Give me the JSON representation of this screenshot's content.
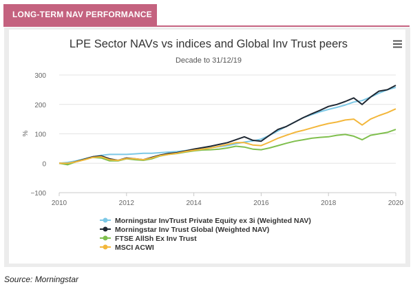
{
  "header": {
    "label": "LONG-TERM NAV PERFORMANCE"
  },
  "source": "Source: Morningstar",
  "chart_data": {
    "type": "line",
    "title": "LPE Sector NAVs vs indices and Global Inv Trust peers",
    "subtitle": "Decade to 31/12/19",
    "ylabel": "%",
    "xlabel": "",
    "xlim": [
      2010,
      2020
    ],
    "ylim": [
      -100,
      300
    ],
    "x_ticks": [
      "2010",
      "2012",
      "2014",
      "2016",
      "2018",
      "2020"
    ],
    "y_ticks": [
      "300",
      "200",
      "100",
      "0",
      "−100"
    ],
    "grid": "horizontal",
    "legend_position": "bottom",
    "series": [
      {
        "name": "Morningstar InvTrust Private Equity ex 3i (Weighted NAV)",
        "color": "#7cc8e6",
        "points": [
          [
            2010.0,
            0
          ],
          [
            2010.25,
            3
          ],
          [
            2010.5,
            8
          ],
          [
            2010.75,
            15
          ],
          [
            2011.0,
            22
          ],
          [
            2011.25,
            27
          ],
          [
            2011.5,
            30
          ],
          [
            2011.75,
            30
          ],
          [
            2012.0,
            30
          ],
          [
            2012.25,
            32
          ],
          [
            2012.5,
            34
          ],
          [
            2012.75,
            34
          ],
          [
            2013.0,
            36
          ],
          [
            2013.25,
            38
          ],
          [
            2013.5,
            40
          ],
          [
            2013.75,
            43
          ],
          [
            2014.0,
            47
          ],
          [
            2014.25,
            50
          ],
          [
            2014.5,
            53
          ],
          [
            2014.75,
            56
          ],
          [
            2015.0,
            60
          ],
          [
            2015.25,
            66
          ],
          [
            2015.5,
            72
          ],
          [
            2015.75,
            76
          ],
          [
            2016.0,
            82
          ],
          [
            2016.25,
            95
          ],
          [
            2016.5,
            110
          ],
          [
            2016.75,
            125
          ],
          [
            2017.0,
            140
          ],
          [
            2017.25,
            155
          ],
          [
            2017.5,
            165
          ],
          [
            2017.75,
            175
          ],
          [
            2018.0,
            183
          ],
          [
            2018.25,
            190
          ],
          [
            2018.5,
            198
          ],
          [
            2018.75,
            208
          ],
          [
            2019.0,
            213
          ],
          [
            2019.25,
            225
          ],
          [
            2019.5,
            238
          ],
          [
            2019.75,
            250
          ],
          [
            2020.0,
            258
          ]
        ]
      },
      {
        "name": "Morningstar Inv Trust Global (Weighted NAV)",
        "color": "#1f2833",
        "points": [
          [
            2010.0,
            0
          ],
          [
            2010.25,
            -2
          ],
          [
            2010.5,
            6
          ],
          [
            2010.75,
            14
          ],
          [
            2011.0,
            22
          ],
          [
            2011.25,
            25
          ],
          [
            2011.5,
            15
          ],
          [
            2011.75,
            10
          ],
          [
            2012.0,
            18
          ],
          [
            2012.25,
            15
          ],
          [
            2012.5,
            12
          ],
          [
            2012.75,
            20
          ],
          [
            2013.0,
            28
          ],
          [
            2013.25,
            33
          ],
          [
            2013.5,
            36
          ],
          [
            2013.75,
            42
          ],
          [
            2014.0,
            48
          ],
          [
            2014.25,
            53
          ],
          [
            2014.5,
            58
          ],
          [
            2014.75,
            64
          ],
          [
            2015.0,
            70
          ],
          [
            2015.25,
            80
          ],
          [
            2015.5,
            90
          ],
          [
            2015.75,
            78
          ],
          [
            2016.0,
            75
          ],
          [
            2016.25,
            95
          ],
          [
            2016.5,
            115
          ],
          [
            2016.75,
            125
          ],
          [
            2017.0,
            140
          ],
          [
            2017.25,
            155
          ],
          [
            2017.5,
            168
          ],
          [
            2017.75,
            180
          ],
          [
            2018.0,
            193
          ],
          [
            2018.25,
            200
          ],
          [
            2018.5,
            210
          ],
          [
            2018.75,
            222
          ],
          [
            2019.0,
            200
          ],
          [
            2019.25,
            225
          ],
          [
            2019.5,
            245
          ],
          [
            2019.75,
            250
          ],
          [
            2020.0,
            265
          ]
        ]
      },
      {
        "name": "FTSE AllSh Ex Inv Trust",
        "color": "#7fbf4d",
        "points": [
          [
            2010.0,
            0
          ],
          [
            2010.25,
            -5
          ],
          [
            2010.5,
            5
          ],
          [
            2010.75,
            12
          ],
          [
            2011.0,
            20
          ],
          [
            2011.25,
            18
          ],
          [
            2011.5,
            8
          ],
          [
            2011.75,
            8
          ],
          [
            2012.0,
            15
          ],
          [
            2012.25,
            12
          ],
          [
            2012.5,
            10
          ],
          [
            2012.75,
            15
          ],
          [
            2013.0,
            25
          ],
          [
            2013.25,
            30
          ],
          [
            2013.5,
            33
          ],
          [
            2013.75,
            38
          ],
          [
            2014.0,
            42
          ],
          [
            2014.25,
            45
          ],
          [
            2014.5,
            46
          ],
          [
            2014.75,
            48
          ],
          [
            2015.0,
            52
          ],
          [
            2015.25,
            58
          ],
          [
            2015.5,
            55
          ],
          [
            2015.75,
            48
          ],
          [
            2016.0,
            46
          ],
          [
            2016.25,
            52
          ],
          [
            2016.5,
            60
          ],
          [
            2016.75,
            68
          ],
          [
            2017.0,
            75
          ],
          [
            2017.25,
            80
          ],
          [
            2017.5,
            85
          ],
          [
            2017.75,
            88
          ],
          [
            2018.0,
            90
          ],
          [
            2018.25,
            95
          ],
          [
            2018.5,
            98
          ],
          [
            2018.75,
            92
          ],
          [
            2019.0,
            80
          ],
          [
            2019.25,
            95
          ],
          [
            2019.5,
            100
          ],
          [
            2019.75,
            105
          ],
          [
            2020.0,
            115
          ]
        ]
      },
      {
        "name": "MSCI ACWI",
        "color": "#f3b73b",
        "points": [
          [
            2010.0,
            0
          ],
          [
            2010.25,
            0
          ],
          [
            2010.5,
            5
          ],
          [
            2010.75,
            12
          ],
          [
            2011.0,
            20
          ],
          [
            2011.25,
            22
          ],
          [
            2011.5,
            12
          ],
          [
            2011.75,
            10
          ],
          [
            2012.0,
            16
          ],
          [
            2012.25,
            15
          ],
          [
            2012.5,
            12
          ],
          [
            2012.75,
            18
          ],
          [
            2013.0,
            26
          ],
          [
            2013.25,
            30
          ],
          [
            2013.5,
            34
          ],
          [
            2013.75,
            40
          ],
          [
            2014.0,
            44
          ],
          [
            2014.25,
            48
          ],
          [
            2014.5,
            52
          ],
          [
            2014.75,
            58
          ],
          [
            2015.0,
            64
          ],
          [
            2015.25,
            70
          ],
          [
            2015.5,
            70
          ],
          [
            2015.75,
            62
          ],
          [
            2016.0,
            60
          ],
          [
            2016.25,
            72
          ],
          [
            2016.5,
            85
          ],
          [
            2016.75,
            95
          ],
          [
            2017.0,
            105
          ],
          [
            2017.25,
            112
          ],
          [
            2017.5,
            120
          ],
          [
            2017.75,
            128
          ],
          [
            2018.0,
            135
          ],
          [
            2018.25,
            140
          ],
          [
            2018.5,
            147
          ],
          [
            2018.75,
            150
          ],
          [
            2019.0,
            130
          ],
          [
            2019.25,
            150
          ],
          [
            2019.5,
            162
          ],
          [
            2019.75,
            172
          ],
          [
            2020.0,
            185
          ]
        ]
      }
    ]
  }
}
